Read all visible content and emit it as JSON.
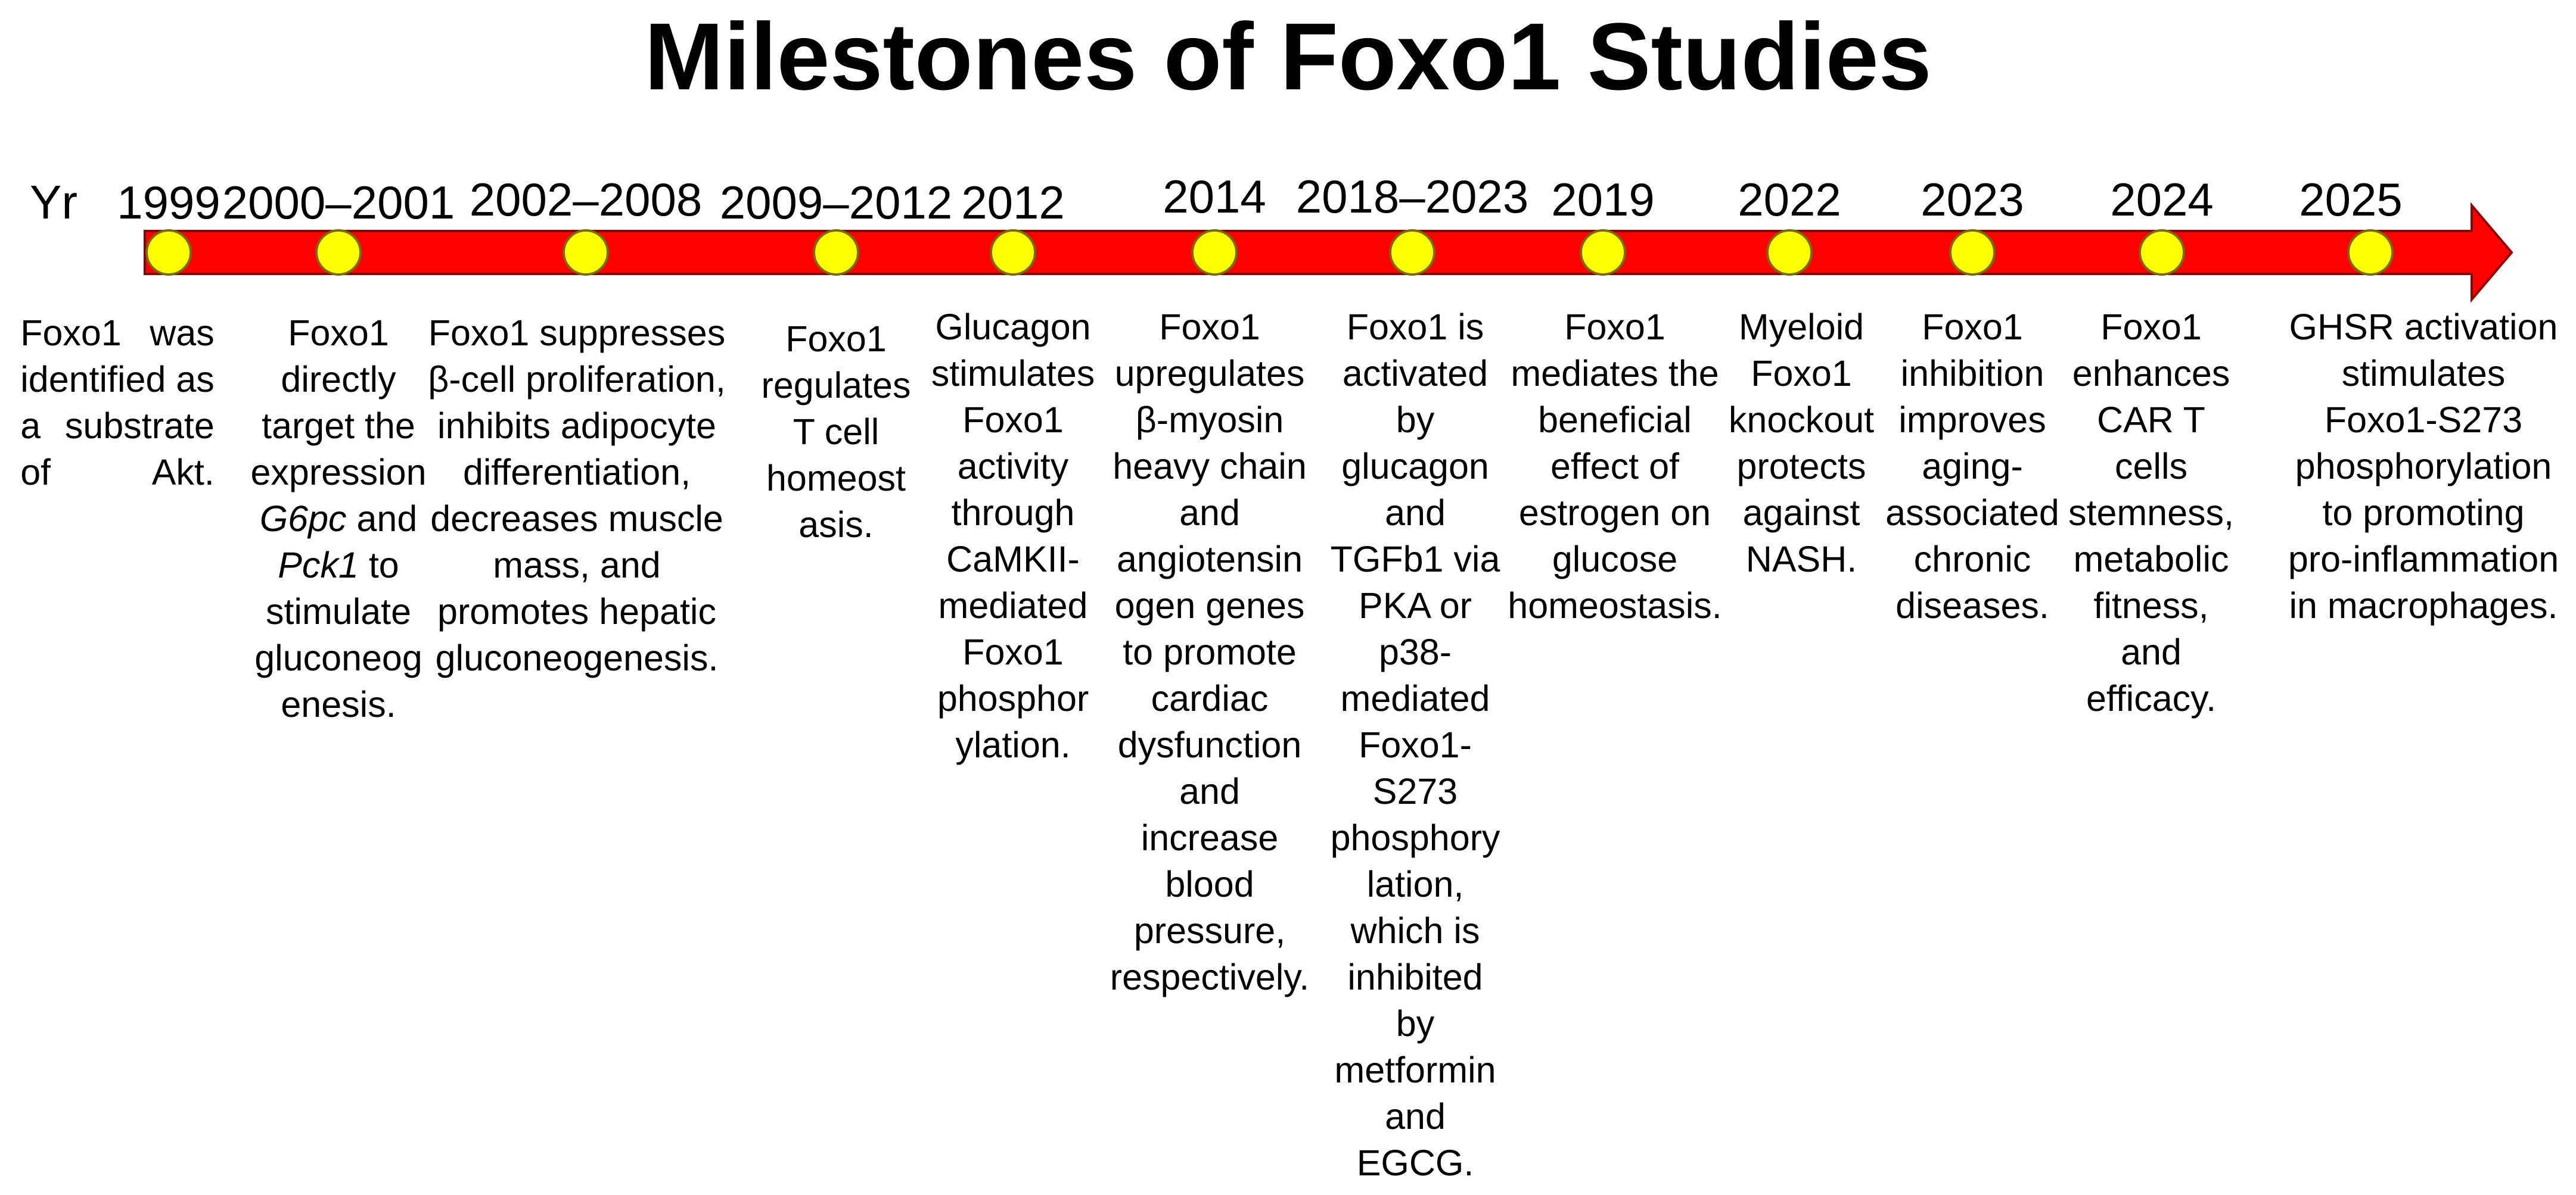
{
  "title": "Milestones of Foxo1 Studies",
  "year_prefix": "Yr",
  "colors": {
    "arrow_fill": "#ff0000",
    "arrow_stroke": "#8b0000",
    "marker_fill": "#ffff00",
    "marker_stroke": "#7a6a00"
  },
  "milestones": [
    {
      "year": "1999",
      "lines": [
        [
          {
            "t": "Foxo1 was"
          }
        ],
        [
          {
            "t": "identified as"
          }
        ],
        [
          {
            "t": "a substrate"
          }
        ],
        [
          {
            "t": "of Akt."
          }
        ]
      ]
    },
    {
      "year": "2000–2001",
      "lines": [
        [
          {
            "t": "Foxo1"
          }
        ],
        [
          {
            "t": "directly"
          }
        ],
        [
          {
            "t": "target the"
          }
        ],
        [
          {
            "t": "expression"
          }
        ],
        [
          {
            "t": "G6pc",
            "i": true
          },
          {
            "t": " and"
          }
        ],
        [
          {
            "t": "Pck1",
            "i": true
          },
          {
            "t": " to"
          }
        ],
        [
          {
            "t": "stimulate"
          }
        ],
        [
          {
            "t": "gluconeog"
          }
        ],
        [
          {
            "t": "enesis."
          }
        ]
      ]
    },
    {
      "year": "2002–2008",
      "lines": [
        [
          {
            "t": "Foxo1 suppresses"
          }
        ],
        [
          {
            "t": "β-cell proliferation,"
          }
        ],
        [
          {
            "t": "inhibits adipocyte"
          }
        ],
        [
          {
            "t": "differentiation,"
          }
        ],
        [
          {
            "t": "decreases muscle"
          }
        ],
        [
          {
            "t": "mass, and"
          }
        ],
        [
          {
            "t": "promotes hepatic"
          }
        ],
        [
          {
            "t": "gluconeogenesis."
          }
        ]
      ]
    },
    {
      "year": "2009–2012",
      "lines": [
        [
          {
            "t": "Foxo1"
          }
        ],
        [
          {
            "t": "regulates"
          }
        ],
        [
          {
            "t": "T cell"
          }
        ],
        [
          {
            "t": "homeost"
          }
        ],
        [
          {
            "t": "asis."
          }
        ]
      ]
    },
    {
      "year": "2012",
      "lines": [
        [
          {
            "t": "Glucagon"
          }
        ],
        [
          {
            "t": "stimulates"
          }
        ],
        [
          {
            "t": "Foxo1"
          }
        ],
        [
          {
            "t": "activity"
          }
        ],
        [
          {
            "t": "through"
          }
        ],
        [
          {
            "t": "CaMKII-"
          }
        ],
        [
          {
            "t": "mediated"
          }
        ],
        [
          {
            "t": "Foxo1"
          }
        ],
        [
          {
            "t": "phosphor"
          }
        ],
        [
          {
            "t": "ylation."
          }
        ]
      ]
    },
    {
      "year": "2014",
      "lines": [
        [
          {
            "t": "Foxo1"
          }
        ],
        [
          {
            "t": "upregulates"
          }
        ],
        [
          {
            "t": "β-myosin"
          }
        ],
        [
          {
            "t": "heavy chain"
          }
        ],
        [
          {
            "t": "and"
          }
        ],
        [
          {
            "t": "angiotensin"
          }
        ],
        [
          {
            "t": "ogen genes"
          }
        ],
        [
          {
            "t": "to promote"
          }
        ],
        [
          {
            "t": "cardiac"
          }
        ],
        [
          {
            "t": "dysfunction"
          }
        ],
        [
          {
            "t": "and"
          }
        ],
        [
          {
            "t": "increase"
          }
        ],
        [
          {
            "t": "blood"
          }
        ],
        [
          {
            "t": "pressure,"
          }
        ],
        [
          {
            "t": "respectively."
          }
        ]
      ]
    },
    {
      "year": "2018–2023",
      "lines": [
        [
          {
            "t": "Foxo1 is"
          }
        ],
        [
          {
            "t": "activated"
          }
        ],
        [
          {
            "t": "by"
          }
        ],
        [
          {
            "t": "glucagon"
          }
        ],
        [
          {
            "t": "and"
          }
        ],
        [
          {
            "t": "TGFb1 via"
          }
        ],
        [
          {
            "t": "PKA or"
          }
        ],
        [
          {
            "t": "p38-"
          }
        ],
        [
          {
            "t": "mediated"
          }
        ],
        [
          {
            "t": "Foxo1-"
          }
        ],
        [
          {
            "t": "S273"
          }
        ],
        [
          {
            "t": "phosphory"
          }
        ],
        [
          {
            "t": "lation,"
          }
        ],
        [
          {
            "t": "which is"
          }
        ],
        [
          {
            "t": "inhibited"
          }
        ],
        [
          {
            "t": "by"
          }
        ],
        [
          {
            "t": "metformin"
          }
        ],
        [
          {
            "t": "and"
          }
        ],
        [
          {
            "t": "EGCG."
          }
        ]
      ]
    },
    {
      "year": "2019",
      "lines": [
        [
          {
            "t": "Foxo1"
          }
        ],
        [
          {
            "t": "mediates the"
          }
        ],
        [
          {
            "t": "beneficial"
          }
        ],
        [
          {
            "t": "effect of"
          }
        ],
        [
          {
            "t": "estrogen on"
          }
        ],
        [
          {
            "t": "glucose"
          }
        ],
        [
          {
            "t": "homeostasis."
          }
        ]
      ]
    },
    {
      "year": "2022",
      "lines": [
        [
          {
            "t": "Myeloid"
          }
        ],
        [
          {
            "t": "Foxo1"
          }
        ],
        [
          {
            "t": "knockout"
          }
        ],
        [
          {
            "t": "protects"
          }
        ],
        [
          {
            "t": "against"
          }
        ],
        [
          {
            "t": "NASH."
          }
        ]
      ]
    },
    {
      "year": "2023",
      "lines": [
        [
          {
            "t": "Foxo1"
          }
        ],
        [
          {
            "t": "inhibition"
          }
        ],
        [
          {
            "t": "improves"
          }
        ],
        [
          {
            "t": "aging-"
          }
        ],
        [
          {
            "t": "associated"
          }
        ],
        [
          {
            "t": "chronic"
          }
        ],
        [
          {
            "t": "diseases."
          }
        ]
      ]
    },
    {
      "year": "2024",
      "lines": [
        [
          {
            "t": "Foxo1"
          }
        ],
        [
          {
            "t": "enhances"
          }
        ],
        [
          {
            "t": "CAR T"
          }
        ],
        [
          {
            "t": "cells"
          }
        ],
        [
          {
            "t": "stemness,"
          }
        ],
        [
          {
            "t": "metabolic"
          }
        ],
        [
          {
            "t": "fitness,"
          }
        ],
        [
          {
            "t": "and"
          }
        ],
        [
          {
            "t": "efficacy."
          }
        ]
      ]
    },
    {
      "year": "2025",
      "lines": [
        [
          {
            "t": "GHSR activation"
          }
        ],
        [
          {
            "t": "stimulates"
          }
        ],
        [
          {
            "t": "Foxo1-S273"
          }
        ],
        [
          {
            "t": "phosphorylation"
          }
        ],
        [
          {
            "t": "to promoting"
          }
        ],
        [
          {
            "t": "pro-inflammation"
          }
        ],
        [
          {
            "t": "in macrophages."
          }
        ]
      ]
    }
  ]
}
